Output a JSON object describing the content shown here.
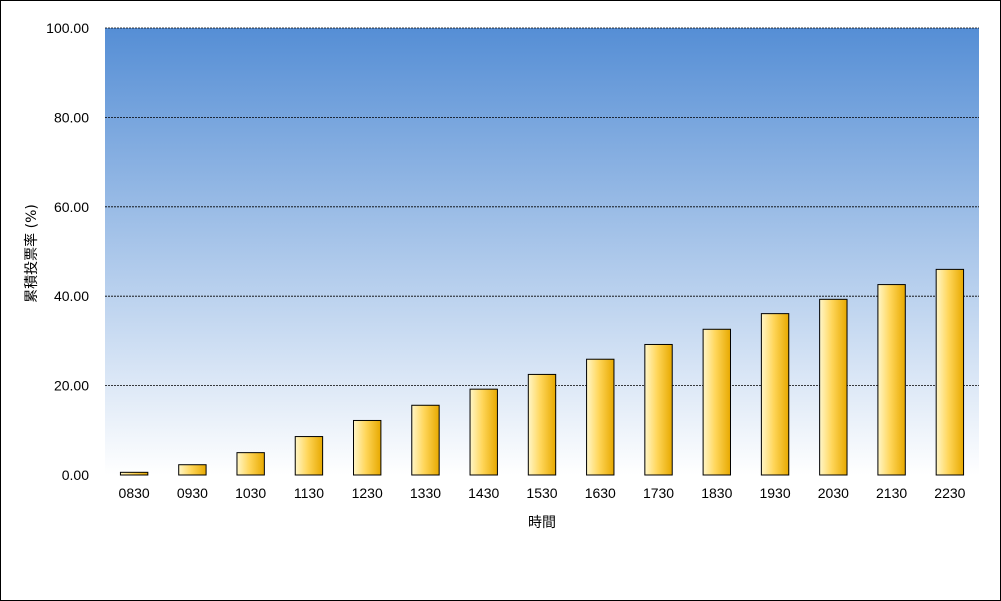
{
  "chart_data": {
    "type": "bar",
    "title": "",
    "xlabel": "時間",
    "ylabel": "累積投票率 (%)",
    "categories": [
      "0830",
      "0930",
      "1030",
      "1130",
      "1230",
      "1330",
      "1430",
      "1530",
      "1630",
      "1730",
      "1830",
      "1930",
      "2030",
      "2130",
      "2230"
    ],
    "values": [
      0.6,
      2.3,
      5.0,
      8.6,
      12.2,
      15.6,
      19.2,
      22.5,
      25.9,
      29.2,
      32.6,
      36.1,
      39.3,
      42.6,
      46.0
    ],
    "ylim": [
      0,
      100
    ],
    "yticks": [
      "0.00",
      "20.00",
      "40.00",
      "60.00",
      "80.00",
      "100.00"
    ],
    "grid": true,
    "legend": "none"
  },
  "colors": {
    "plot_top": "#558ed5",
    "plot_bottom": "#ffffff",
    "bar_light": "#fff6c8",
    "bar_mid": "#ffd65a",
    "bar_dark": "#e7a900",
    "bar_stroke": "#000000",
    "gridline": "#000000"
  }
}
